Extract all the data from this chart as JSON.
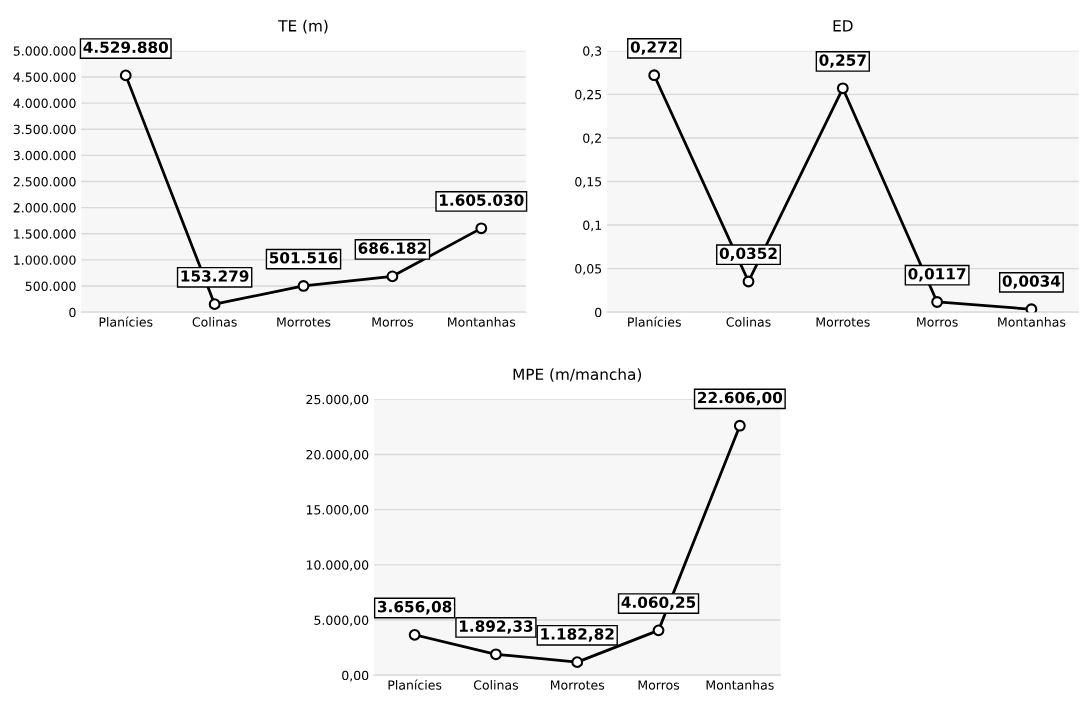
{
  "chart_data": [
    {
      "type": "line",
      "title": "TE (m)",
      "categories": [
        "Planícies",
        "Colinas",
        "Morrotes",
        "Morros",
        "Montanhas"
      ],
      "series": [
        {
          "color": "#000000",
          "values": [
            4529880,
            153279,
            501516,
            686182,
            1605030
          ],
          "value_labels": [
            "4.529.880",
            "153.279",
            "501.516",
            "686.182",
            "1.605.030"
          ]
        }
      ],
      "ylim": [
        0,
        5000000
      ],
      "yticks": [
        {
          "value": 0,
          "label": "0"
        },
        {
          "value": 500000,
          "label": "500.000"
        },
        {
          "value": 1000000,
          "label": "1.000.000"
        },
        {
          "value": 1500000,
          "label": "1.500.000"
        },
        {
          "value": 2000000,
          "label": "2.000.000"
        },
        {
          "value": 2500000,
          "label": "2.500.000"
        },
        {
          "value": 3000000,
          "label": "3.000.000"
        },
        {
          "value": 3500000,
          "label": "3.500.000"
        },
        {
          "value": 4000000,
          "label": "4.000.000"
        },
        {
          "value": 4500000,
          "label": "4.500.000"
        },
        {
          "value": 5000000,
          "label": "5.000.000"
        }
      ],
      "grid": "y",
      "marker": "circle",
      "line_style": "solid"
    },
    {
      "type": "line",
      "title": "ED",
      "categories": [
        "Planícies",
        "Colinas",
        "Morrotes",
        "Morros",
        "Montanhas"
      ],
      "series": [
        {
          "color": "#000000",
          "values": [
            0.272,
            0.0352,
            0.257,
            0.0117,
            0.0034
          ],
          "value_labels": [
            "0,272",
            "0,0352",
            "0,257",
            "0,0117",
            "0,0034"
          ]
        }
      ],
      "ylim": [
        0,
        0.3
      ],
      "yticks": [
        {
          "value": 0,
          "label": "0"
        },
        {
          "value": 0.05,
          "label": "0,05"
        },
        {
          "value": 0.1,
          "label": "0,1"
        },
        {
          "value": 0.15,
          "label": "0,15"
        },
        {
          "value": 0.2,
          "label": "0,2"
        },
        {
          "value": 0.25,
          "label": "0,25"
        },
        {
          "value": 0.3,
          "label": "0,3"
        }
      ],
      "grid": "y",
      "marker": "circle",
      "line_style": "solid"
    },
    {
      "type": "line",
      "title": "MPE (m/mancha)",
      "categories": [
        "Planícies",
        "Colinas",
        "Morrotes",
        "Morros",
        "Montanhas"
      ],
      "series": [
        {
          "color": "#000000",
          "values": [
            3656.08,
            1892.33,
            1182.82,
            4060.25,
            22606.0
          ],
          "value_labels": [
            "3.656,08",
            "1.892,33",
            "1.182,82",
            "4.060,25",
            "22.606,00"
          ]
        }
      ],
      "ylim": [
        0,
        25000
      ],
      "yticks": [
        {
          "value": 0,
          "label": "0,00"
        },
        {
          "value": 5000,
          "label": "5.000,00"
        },
        {
          "value": 10000,
          "label": "10.000,00"
        },
        {
          "value": 15000,
          "label": "15.000,00"
        },
        {
          "value": 20000,
          "label": "20.000,00"
        },
        {
          "value": 25000,
          "label": "25.000,00"
        }
      ],
      "grid": "y",
      "marker": "circle",
      "line_style": "solid"
    }
  ]
}
